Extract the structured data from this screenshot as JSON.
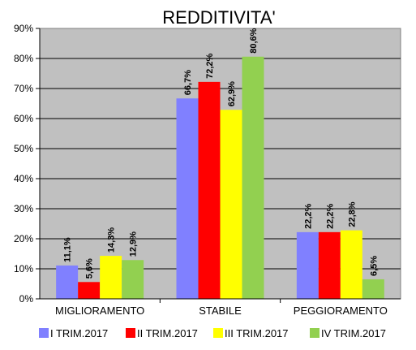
{
  "chart_data": {
    "type": "bar",
    "title": "REDDITIVITA'",
    "categories": [
      "MIGLIORAMENTO",
      "STABILE",
      "PEGGIORAMENTO"
    ],
    "series": [
      {
        "name": "I TRIM.2017",
        "values": [
          11.1,
          66.7,
          22.2
        ],
        "labels": [
          "11,1%",
          "66,7%",
          "22,2%"
        ],
        "color": "#8080FF"
      },
      {
        "name": "II TRIM.2017",
        "values": [
          5.6,
          72.2,
          22.2
        ],
        "labels": [
          "5,6%",
          "72,2%",
          "22,2%"
        ],
        "color": "#FF0000"
      },
      {
        "name": "III TRIM.2017",
        "values": [
          14.3,
          62.9,
          22.8
        ],
        "labels": [
          "14,3%",
          "62,9%",
          "22,8%"
        ],
        "color": "#FFFF00"
      },
      {
        "name": "IV TRIM.2017",
        "values": [
          12.9,
          80.6,
          6.5
        ],
        "labels": [
          "12,9%",
          "80,6%",
          "6,5%"
        ],
        "color": "#92D050"
      }
    ],
    "yticks": [
      "0%",
      "10%",
      "20%",
      "30%",
      "40%",
      "50%",
      "60%",
      "70%",
      "80%",
      "90%"
    ],
    "ylim": [
      0,
      90
    ],
    "grid": true,
    "legend_position": "bottom",
    "plot_background": "#C0C0C0"
  }
}
